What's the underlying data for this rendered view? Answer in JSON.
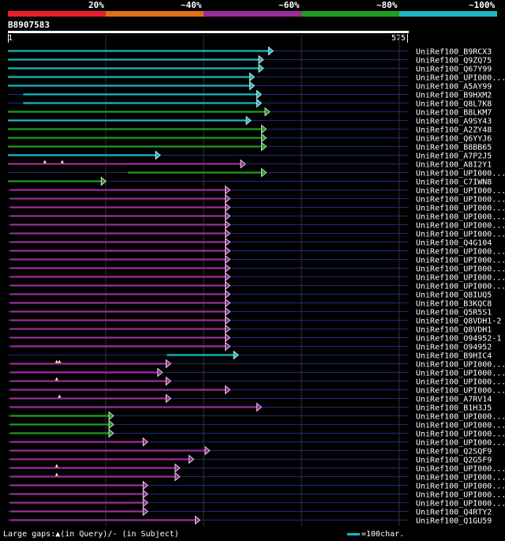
{
  "legend": {
    "labels": [
      "20%",
      "~40%",
      "~60%",
      "~80%",
      "~100%"
    ],
    "colors": [
      "#e8202c",
      "#e07018",
      "#9a2c9c",
      "#1e9e1e",
      "#18b8c4"
    ]
  },
  "query": {
    "id": "B8907583",
    "start": "1",
    "end": "575",
    "length": 575
  },
  "hits": [
    {
      "name": "UniRef100_B9RCX3",
      "c": 4,
      "s": 0,
      "e": 375,
      "gaps": []
    },
    {
      "name": "UniRef100_Q9ZQ75",
      "c": 4,
      "s": 0,
      "e": 361,
      "gaps": []
    },
    {
      "name": "UniRef100_Q67Y99",
      "c": 4,
      "s": 0,
      "e": 361,
      "gaps": []
    },
    {
      "name": "UniRef100_UPI000...",
      "c": 4,
      "s": 0,
      "e": 348,
      "gaps": []
    },
    {
      "name": "UniRef100_A5AY99",
      "c": 4,
      "s": 0,
      "e": 348,
      "gaps": []
    },
    {
      "name": "UniRef100_B9HXM2",
      "c": 4,
      "s": 22,
      "e": 358,
      "gaps": []
    },
    {
      "name": "UniRef100_Q8L7K8",
      "c": 4,
      "s": 22,
      "e": 358,
      "gaps": []
    },
    {
      "name": "UniRef100_B8LKM7",
      "c": 3,
      "s": 0,
      "e": 370,
      "gaps": []
    },
    {
      "name": "UniRef100_A9SY43",
      "c": 4,
      "s": 0,
      "e": 343,
      "gaps": []
    },
    {
      "name": "UniRef100_A2ZY48",
      "c": 3,
      "s": 0,
      "e": 365,
      "gaps": []
    },
    {
      "name": "UniRef100_Q6YYJ6",
      "c": 3,
      "s": 0,
      "e": 365,
      "gaps": []
    },
    {
      "name": "UniRef100_B8BB65",
      "c": 3,
      "s": 0,
      "e": 365,
      "gaps": []
    },
    {
      "name": "UniRef100_A7P2J5",
      "c": 4,
      "s": 0,
      "e": 213,
      "gaps": []
    },
    {
      "name": "UniRef100_A8I2Y1",
      "c": 2,
      "s": 0,
      "e": 335,
      "gaps": [
        53,
        78
      ]
    },
    {
      "name": "UniRef100_UPI000...",
      "c": 3,
      "s": 172,
      "e": 365,
      "gaps": []
    },
    {
      "name": "UniRef100_C7IWN8",
      "c": 3,
      "s": 0,
      "e": 135,
      "gaps": []
    },
    {
      "name": "UniRef100_UPI000...",
      "c": 2,
      "s": 3,
      "e": 313,
      "gaps": []
    },
    {
      "name": "UniRef100_UPI000...",
      "c": 2,
      "s": 3,
      "e": 313,
      "gaps": []
    },
    {
      "name": "UniRef100_UPI000...",
      "c": 2,
      "s": 3,
      "e": 313,
      "gaps": []
    },
    {
      "name": "UniRef100_UPI000...",
      "c": 2,
      "s": 3,
      "e": 313,
      "gaps": []
    },
    {
      "name": "UniRef100_UPI000...",
      "c": 2,
      "s": 3,
      "e": 313,
      "gaps": []
    },
    {
      "name": "UniRef100_UPI000...",
      "c": 2,
      "s": 3,
      "e": 313,
      "gaps": []
    },
    {
      "name": "UniRef100_Q4G104",
      "c": 2,
      "s": 3,
      "e": 313,
      "gaps": []
    },
    {
      "name": "UniRef100_UPI000...",
      "c": 2,
      "s": 3,
      "e": 313,
      "gaps": []
    },
    {
      "name": "UniRef100_UPI000...",
      "c": 2,
      "s": 3,
      "e": 313,
      "gaps": []
    },
    {
      "name": "UniRef100_UPI000...",
      "c": 2,
      "s": 3,
      "e": 313,
      "gaps": []
    },
    {
      "name": "UniRef100_UPI000...",
      "c": 2,
      "s": 3,
      "e": 313,
      "gaps": []
    },
    {
      "name": "UniRef100_UPI000...",
      "c": 2,
      "s": 3,
      "e": 313,
      "gaps": []
    },
    {
      "name": "UniRef100_Q8IUQ5",
      "c": 2,
      "s": 3,
      "e": 313,
      "gaps": []
    },
    {
      "name": "UniRef100_B3KQC8",
      "c": 2,
      "s": 3,
      "e": 313,
      "gaps": []
    },
    {
      "name": "UniRef100_Q5R5S1",
      "c": 2,
      "s": 3,
      "e": 313,
      "gaps": []
    },
    {
      "name": "UniRef100_Q8VDH1-2",
      "c": 2,
      "s": 3,
      "e": 313,
      "gaps": []
    },
    {
      "name": "UniRef100_Q8VDH1",
      "c": 2,
      "s": 3,
      "e": 313,
      "gaps": []
    },
    {
      "name": "UniRef100_O94952-1",
      "c": 2,
      "s": 3,
      "e": 313,
      "gaps": []
    },
    {
      "name": "UniRef100_O94952",
      "c": 2,
      "s": 3,
      "e": 313,
      "gaps": []
    },
    {
      "name": "UniRef100_B9HIC4",
      "c": 4,
      "s": 228,
      "e": 325,
      "gaps": []
    },
    {
      "name": "UniRef100_UPI000...",
      "c": 2,
      "s": 3,
      "e": 228,
      "gaps": [
        70,
        74
      ]
    },
    {
      "name": "UniRef100_UPI000...",
      "c": 2,
      "s": 3,
      "e": 216,
      "gaps": []
    },
    {
      "name": "UniRef100_UPI000...",
      "c": 2,
      "s": 3,
      "e": 228,
      "gaps": [
        70
      ]
    },
    {
      "name": "UniRef100_UPI000...",
      "c": 2,
      "s": 3,
      "e": 313,
      "gaps": []
    },
    {
      "name": "UniRef100_A7RV14",
      "c": 2,
      "s": 3,
      "e": 228,
      "gaps": [
        74
      ]
    },
    {
      "name": "UniRef100_B1H3J5",
      "c": 2,
      "s": 3,
      "e": 358,
      "gaps": []
    },
    {
      "name": "UniRef100_UPI000...",
      "c": 3,
      "s": 3,
      "e": 146,
      "gaps": []
    },
    {
      "name": "UniRef100_UPI000...",
      "c": 3,
      "s": 3,
      "e": 146,
      "gaps": []
    },
    {
      "name": "UniRef100_UPI000...",
      "c": 3,
      "s": 3,
      "e": 146,
      "gaps": []
    },
    {
      "name": "UniRef100_UPI000...",
      "c": 2,
      "s": 3,
      "e": 195,
      "gaps": []
    },
    {
      "name": "UniRef100_Q2SQF9",
      "c": 2,
      "s": 3,
      "e": 284,
      "gaps": []
    },
    {
      "name": "UniRef100_Q2G5F9",
      "c": 2,
      "s": 3,
      "e": 261,
      "gaps": []
    },
    {
      "name": "UniRef100_UPI000...",
      "c": 2,
      "s": 3,
      "e": 241,
      "gaps": [
        70
      ]
    },
    {
      "name": "UniRef100_UPI000...",
      "c": 2,
      "s": 3,
      "e": 241,
      "gaps": [
        70
      ]
    },
    {
      "name": "UniRef100_UPI000...",
      "c": 2,
      "s": 3,
      "e": 195,
      "gaps": []
    },
    {
      "name": "UniRef100_UPI000...",
      "c": 2,
      "s": 3,
      "e": 195,
      "gaps": []
    },
    {
      "name": "UniRef100_UPI000...",
      "c": 2,
      "s": 3,
      "e": 195,
      "gaps": []
    },
    {
      "name": "UniRef100_Q4RTY2",
      "c": 2,
      "s": 3,
      "e": 195,
      "gaps": []
    },
    {
      "name": "UniRef100_Q1GU59",
      "c": 2,
      "s": 3,
      "e": 270,
      "gaps": []
    }
  ],
  "footer": {
    "gaps_text": "Large gaps:▲(in Query)/- (in Subject)",
    "scale_text": "=100char.",
    "scale_color": "#18b8c4"
  }
}
